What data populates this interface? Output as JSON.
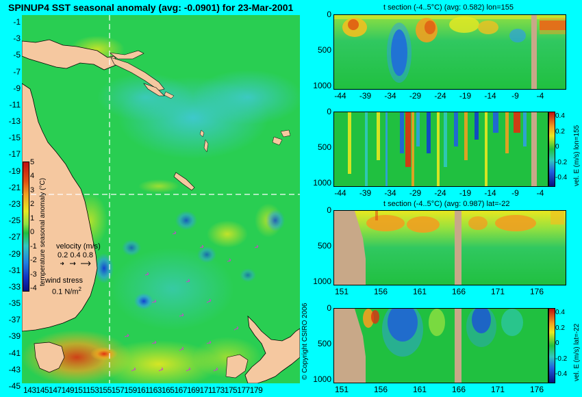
{
  "map": {
    "title": "SPINUP4 SST seasonal anomaly  (avg: -0.0901) for 23-Mar-2001",
    "lat_labels": [
      "-1",
      "-3",
      "-5",
      "-7",
      "-9",
      "-11",
      "-13",
      "-15",
      "-17",
      "-19",
      "-21",
      "-23",
      "-25",
      "-27",
      "-29",
      "-31",
      "-33",
      "-35",
      "-37",
      "-39",
      "-41",
      "-43",
      "-45"
    ],
    "lon_labels_text": "143145147149151153155157159161163165167169171173175177179",
    "colorbar": {
      "label": "temperature seasonal anomaly (°C)",
      "ticks": [
        "5",
        "4",
        "3",
        "2",
        "1",
        "0",
        "-1",
        "-2",
        "-3",
        "-4"
      ]
    },
    "velocity_legend": {
      "title": "velocity (m/s)",
      "scale": "0.2 0.4 0.8"
    },
    "wind_legend": {
      "title": "wind stress",
      "value": "0.1 N/m",
      "exp": "2"
    },
    "copyright": "© Copyright CSIRO 2006",
    "colors": {
      "land": "#f5c8a0",
      "ocean": "#22cc44",
      "crosshair": "#ffffff"
    }
  },
  "panels": [
    {
      "title": "t section (-4..5°C) (avg: 0.582) lon=155",
      "y_ticks": [
        "0",
        "500",
        "1000"
      ],
      "x_ticks": [
        "-44",
        "-39",
        "-34",
        "-29",
        "-24",
        "-19",
        "-14",
        "-9",
        "-4"
      ],
      "side_label": ""
    },
    {
      "title": "",
      "y_ticks": [
        "0",
        "500",
        "1000"
      ],
      "x_ticks": [
        "-44",
        "-39",
        "-34",
        "-29",
        "-24",
        "-19",
        "-14",
        "-9",
        "-4"
      ],
      "side_label": "vel. E (m/s) lon=155",
      "cb_ticks": [
        "0.4",
        "0.2",
        "0",
        "-0.2",
        "-0.4"
      ]
    },
    {
      "title": "t section (-4..5°C) (avg: 0.987) lat=-22",
      "y_ticks": [
        "0",
        "500",
        "1000"
      ],
      "x_ticks": [
        "151",
        "156",
        "161",
        "166",
        "171",
        "176"
      ],
      "side_label": ""
    },
    {
      "title": "",
      "y_ticks": [
        "0",
        "500",
        "1000"
      ],
      "x_ticks": [
        "151",
        "156",
        "161",
        "166",
        "171",
        "176"
      ],
      "side_label": "vel. E (m/s) lat=-22",
      "cb_ticks": [
        "0.4",
        "0.2",
        "0",
        "-0.2",
        "-0.4"
      ]
    }
  ]
}
